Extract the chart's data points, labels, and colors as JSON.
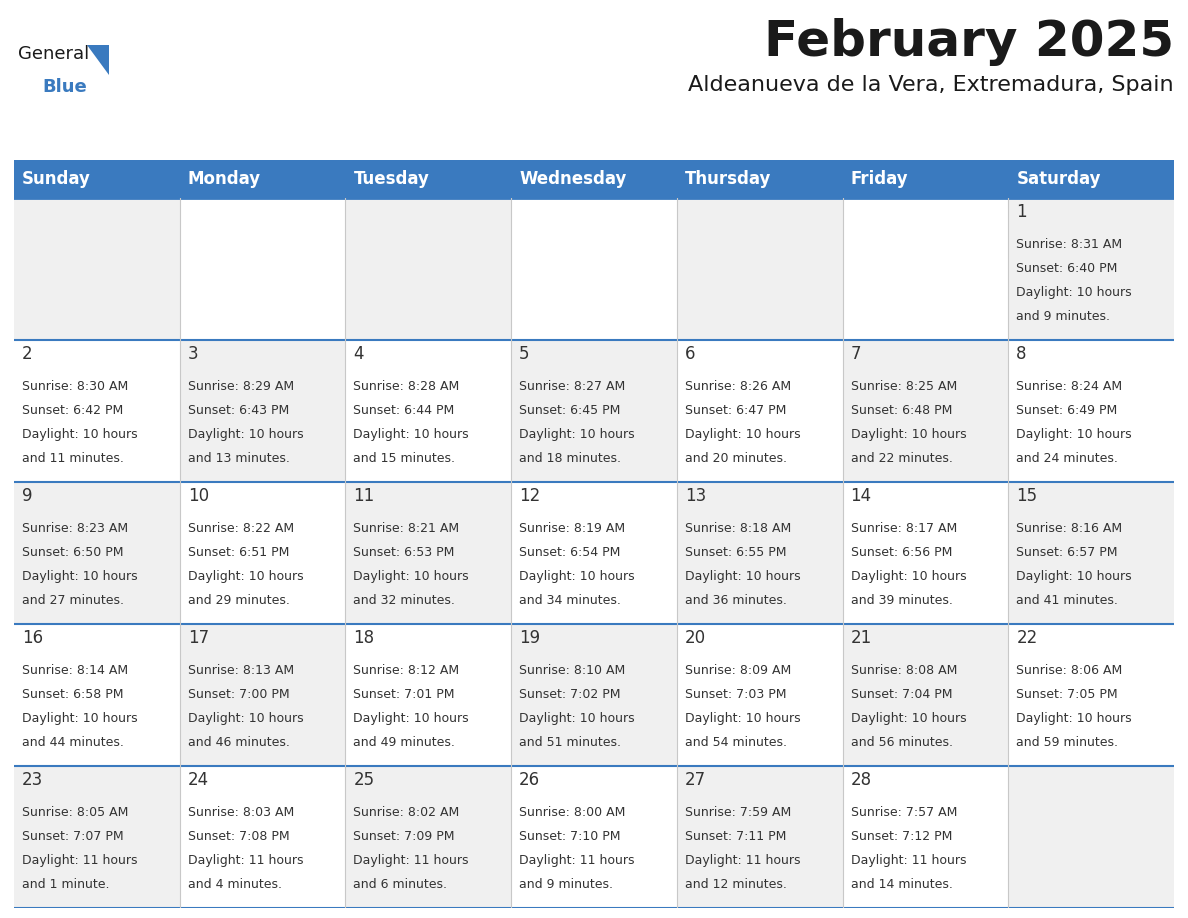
{
  "title": "February 2025",
  "subtitle": "Aldeanueva de la Vera, Extremadura, Spain",
  "header_bg": "#3a7abf",
  "header_text_color": "#ffffff",
  "border_color_blue": "#3a7abf",
  "border_color_gray": "#c8c8c8",
  "text_color": "#333333",
  "cell_bg_odd": "#f0f0f0",
  "cell_bg_even": "#ffffff",
  "day_names": [
    "Sunday",
    "Monday",
    "Tuesday",
    "Wednesday",
    "Thursday",
    "Friday",
    "Saturday"
  ],
  "days_data": [
    {
      "day": 1,
      "col": 6,
      "row": 0,
      "sunrise": "8:31 AM",
      "sunset": "6:40 PM",
      "dl_line1": "Daylight: 10 hours",
      "dl_line2": "and 9 minutes."
    },
    {
      "day": 2,
      "col": 0,
      "row": 1,
      "sunrise": "8:30 AM",
      "sunset": "6:42 PM",
      "dl_line1": "Daylight: 10 hours",
      "dl_line2": "and 11 minutes."
    },
    {
      "day": 3,
      "col": 1,
      "row": 1,
      "sunrise": "8:29 AM",
      "sunset": "6:43 PM",
      "dl_line1": "Daylight: 10 hours",
      "dl_line2": "and 13 minutes."
    },
    {
      "day": 4,
      "col": 2,
      "row": 1,
      "sunrise": "8:28 AM",
      "sunset": "6:44 PM",
      "dl_line1": "Daylight: 10 hours",
      "dl_line2": "and 15 minutes."
    },
    {
      "day": 5,
      "col": 3,
      "row": 1,
      "sunrise": "8:27 AM",
      "sunset": "6:45 PM",
      "dl_line1": "Daylight: 10 hours",
      "dl_line2": "and 18 minutes."
    },
    {
      "day": 6,
      "col": 4,
      "row": 1,
      "sunrise": "8:26 AM",
      "sunset": "6:47 PM",
      "dl_line1": "Daylight: 10 hours",
      "dl_line2": "and 20 minutes."
    },
    {
      "day": 7,
      "col": 5,
      "row": 1,
      "sunrise": "8:25 AM",
      "sunset": "6:48 PM",
      "dl_line1": "Daylight: 10 hours",
      "dl_line2": "and 22 minutes."
    },
    {
      "day": 8,
      "col": 6,
      "row": 1,
      "sunrise": "8:24 AM",
      "sunset": "6:49 PM",
      "dl_line1": "Daylight: 10 hours",
      "dl_line2": "and 24 minutes."
    },
    {
      "day": 9,
      "col": 0,
      "row": 2,
      "sunrise": "8:23 AM",
      "sunset": "6:50 PM",
      "dl_line1": "Daylight: 10 hours",
      "dl_line2": "and 27 minutes."
    },
    {
      "day": 10,
      "col": 1,
      "row": 2,
      "sunrise": "8:22 AM",
      "sunset": "6:51 PM",
      "dl_line1": "Daylight: 10 hours",
      "dl_line2": "and 29 minutes."
    },
    {
      "day": 11,
      "col": 2,
      "row": 2,
      "sunrise": "8:21 AM",
      "sunset": "6:53 PM",
      "dl_line1": "Daylight: 10 hours",
      "dl_line2": "and 32 minutes."
    },
    {
      "day": 12,
      "col": 3,
      "row": 2,
      "sunrise": "8:19 AM",
      "sunset": "6:54 PM",
      "dl_line1": "Daylight: 10 hours",
      "dl_line2": "and 34 minutes."
    },
    {
      "day": 13,
      "col": 4,
      "row": 2,
      "sunrise": "8:18 AM",
      "sunset": "6:55 PM",
      "dl_line1": "Daylight: 10 hours",
      "dl_line2": "and 36 minutes."
    },
    {
      "day": 14,
      "col": 5,
      "row": 2,
      "sunrise": "8:17 AM",
      "sunset": "6:56 PM",
      "dl_line1": "Daylight: 10 hours",
      "dl_line2": "and 39 minutes."
    },
    {
      "day": 15,
      "col": 6,
      "row": 2,
      "sunrise": "8:16 AM",
      "sunset": "6:57 PM",
      "dl_line1": "Daylight: 10 hours",
      "dl_line2": "and 41 minutes."
    },
    {
      "day": 16,
      "col": 0,
      "row": 3,
      "sunrise": "8:14 AM",
      "sunset": "6:58 PM",
      "dl_line1": "Daylight: 10 hours",
      "dl_line2": "and 44 minutes."
    },
    {
      "day": 17,
      "col": 1,
      "row": 3,
      "sunrise": "8:13 AM",
      "sunset": "7:00 PM",
      "dl_line1": "Daylight: 10 hours",
      "dl_line2": "and 46 minutes."
    },
    {
      "day": 18,
      "col": 2,
      "row": 3,
      "sunrise": "8:12 AM",
      "sunset": "7:01 PM",
      "dl_line1": "Daylight: 10 hours",
      "dl_line2": "and 49 minutes."
    },
    {
      "day": 19,
      "col": 3,
      "row": 3,
      "sunrise": "8:10 AM",
      "sunset": "7:02 PM",
      "dl_line1": "Daylight: 10 hours",
      "dl_line2": "and 51 minutes."
    },
    {
      "day": 20,
      "col": 4,
      "row": 3,
      "sunrise": "8:09 AM",
      "sunset": "7:03 PM",
      "dl_line1": "Daylight: 10 hours",
      "dl_line2": "and 54 minutes."
    },
    {
      "day": 21,
      "col": 5,
      "row": 3,
      "sunrise": "8:08 AM",
      "sunset": "7:04 PM",
      "dl_line1": "Daylight: 10 hours",
      "dl_line2": "and 56 minutes."
    },
    {
      "day": 22,
      "col": 6,
      "row": 3,
      "sunrise": "8:06 AM",
      "sunset": "7:05 PM",
      "dl_line1": "Daylight: 10 hours",
      "dl_line2": "and 59 minutes."
    },
    {
      "day": 23,
      "col": 0,
      "row": 4,
      "sunrise": "8:05 AM",
      "sunset": "7:07 PM",
      "dl_line1": "Daylight: 11 hours",
      "dl_line2": "and 1 minute."
    },
    {
      "day": 24,
      "col": 1,
      "row": 4,
      "sunrise": "8:03 AM",
      "sunset": "7:08 PM",
      "dl_line1": "Daylight: 11 hours",
      "dl_line2": "and 4 minutes."
    },
    {
      "day": 25,
      "col": 2,
      "row": 4,
      "sunrise": "8:02 AM",
      "sunset": "7:09 PM",
      "dl_line1": "Daylight: 11 hours",
      "dl_line2": "and 6 minutes."
    },
    {
      "day": 26,
      "col": 3,
      "row": 4,
      "sunrise": "8:00 AM",
      "sunset": "7:10 PM",
      "dl_line1": "Daylight: 11 hours",
      "dl_line2": "and 9 minutes."
    },
    {
      "day": 27,
      "col": 4,
      "row": 4,
      "sunrise": "7:59 AM",
      "sunset": "7:11 PM",
      "dl_line1": "Daylight: 11 hours",
      "dl_line2": "and 12 minutes."
    },
    {
      "day": 28,
      "col": 5,
      "row": 4,
      "sunrise": "7:57 AM",
      "sunset": "7:12 PM",
      "dl_line1": "Daylight: 11 hours",
      "dl_line2": "and 14 minutes."
    }
  ],
  "num_rows": 5,
  "num_cols": 7,
  "logo_general_color": "#1a1a1a",
  "logo_blue_color": "#3a7abf",
  "title_fontsize": 36,
  "subtitle_fontsize": 16,
  "dayname_fontsize": 12,
  "day_num_fontsize": 12,
  "info_fontsize": 9
}
